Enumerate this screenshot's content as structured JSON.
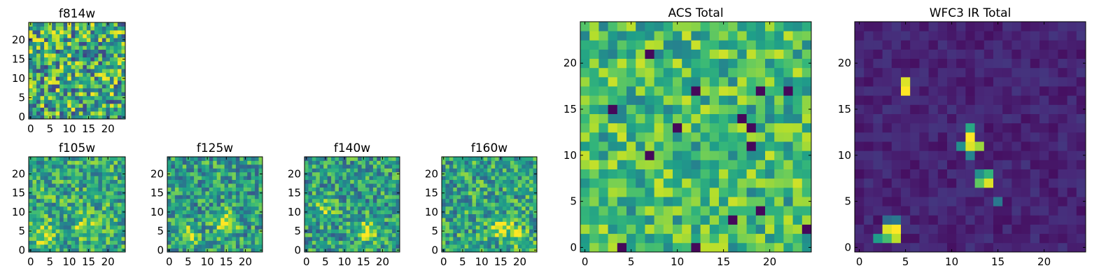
{
  "chart_data": [
    {
      "type": "heatmap",
      "title": "f814w",
      "grid": false,
      "xlim": [
        -0.5,
        24.5
      ],
      "ylim": [
        -0.5,
        24.5
      ],
      "x_ticks": [
        0,
        5,
        10,
        15,
        20
      ],
      "y_ticks": [
        0,
        5,
        10,
        15,
        20
      ],
      "colormap": "viridis",
      "vmin": 0,
      "vmax": 1,
      "seed": 11,
      "blobs": [],
      "base": 0.6,
      "noise": 0.8
    },
    {
      "type": "heatmap",
      "title": "f105w",
      "grid": false,
      "xlim": [
        -0.5,
        24.5
      ],
      "ylim": [
        -0.5,
        24.5
      ],
      "x_ticks": [
        0,
        5,
        10,
        15,
        20
      ],
      "y_ticks": [
        0,
        5,
        10,
        15,
        20
      ],
      "colormap": "viridis",
      "vmin": 0,
      "vmax": 1,
      "seed": 21,
      "blobs": [
        [
          4,
          4,
          0.35
        ],
        [
          14,
          6,
          0.3
        ]
      ],
      "base": 0.6,
      "noise": 0.55
    },
    {
      "type": "heatmap",
      "title": "f125w",
      "grid": false,
      "xlim": [
        -0.5,
        24.5
      ],
      "ylim": [
        -0.5,
        24.5
      ],
      "x_ticks": [
        0,
        5,
        10,
        15,
        20
      ],
      "y_ticks": [
        0,
        5,
        10,
        15,
        20
      ],
      "colormap": "viridis",
      "vmin": 0,
      "vmax": 1,
      "seed": 31,
      "blobs": [
        [
          15,
          7,
          0.4
        ],
        [
          5,
          4,
          0.25
        ]
      ],
      "base": 0.55,
      "noise": 0.55
    },
    {
      "type": "heatmap",
      "title": "f140w",
      "grid": false,
      "xlim": [
        -0.5,
        24.5
      ],
      "ylim": [
        -0.5,
        24.5
      ],
      "x_ticks": [
        0,
        5,
        10,
        15,
        20
      ],
      "y_ticks": [
        0,
        5,
        10,
        15,
        20
      ],
      "colormap": "viridis",
      "vmin": 0,
      "vmax": 1,
      "seed": 41,
      "blobs": [
        [
          16,
          5,
          0.4
        ],
        [
          5,
          11,
          0.2
        ]
      ],
      "base": 0.55,
      "noise": 0.55
    },
    {
      "type": "heatmap",
      "title": "f160w",
      "grid": false,
      "xlim": [
        -0.5,
        24.5
      ],
      "ylim": [
        -0.5,
        24.5
      ],
      "x_ticks": [
        0,
        5,
        10,
        15,
        20
      ],
      "y_ticks": [
        0,
        5,
        10,
        15,
        20
      ],
      "colormap": "viridis",
      "vmin": 0,
      "vmax": 1,
      "seed": 51,
      "blobs": [
        [
          15,
          6,
          0.4
        ],
        [
          20,
          3,
          0.25
        ]
      ],
      "base": 0.58,
      "noise": 0.55
    },
    {
      "type": "heatmap",
      "title": "ACS Total",
      "grid": false,
      "xlim": [
        -0.5,
        24.5
      ],
      "ylim": [
        -0.5,
        24.5
      ],
      "x_ticks": [
        0,
        5,
        10,
        15,
        20
      ],
      "y_ticks": [
        0,
        5,
        10,
        15,
        20
      ],
      "colormap": "viridis",
      "vmin": 0,
      "vmax": 1,
      "seed": 61,
      "blobs": [],
      "base": 0.68,
      "noise": 0.5,
      "low_cells": [
        [
          7,
          21
        ],
        [
          12,
          17
        ],
        [
          17,
          14
        ],
        [
          19,
          17
        ],
        [
          10,
          13
        ],
        [
          18,
          13
        ],
        [
          18,
          11
        ],
        [
          22,
          17
        ],
        [
          12,
          0
        ],
        [
          24,
          2
        ],
        [
          16,
          3
        ],
        [
          19,
          4
        ],
        [
          4,
          0
        ],
        [
          3,
          15
        ],
        [
          7,
          10
        ]
      ]
    },
    {
      "type": "heatmap",
      "title": "WFC3 IR Total",
      "grid": false,
      "xlim": [
        -0.5,
        24.5
      ],
      "ylim": [
        -0.5,
        24.5
      ],
      "x_ticks": [
        0,
        5,
        10,
        15,
        20
      ],
      "y_ticks": [
        0,
        5,
        10,
        15,
        20
      ],
      "colormap": "viridis",
      "vmin": 0,
      "vmax": 1,
      "seed": 71,
      "blobs": [],
      "base": 0.1,
      "noise": 0.12,
      "bright_cells": [
        [
          4,
          2,
          1.0
        ],
        [
          3,
          2,
          0.95
        ],
        [
          4,
          1,
          0.9
        ],
        [
          3,
          1,
          0.7
        ],
        [
          2,
          1,
          0.55
        ],
        [
          4,
          3,
          0.4
        ],
        [
          3,
          3,
          0.35
        ],
        [
          5,
          17,
          1.0
        ],
        [
          5,
          18,
          0.95
        ],
        [
          12,
          12,
          1.0
        ],
        [
          12,
          11,
          0.95
        ],
        [
          13,
          11,
          0.85
        ],
        [
          11,
          11,
          0.5
        ],
        [
          12,
          13,
          0.6
        ],
        [
          12,
          10,
          0.45
        ],
        [
          14,
          7,
          0.95
        ],
        [
          13,
          7,
          0.75
        ],
        [
          14,
          8,
          0.65
        ],
        [
          13,
          8,
          0.5
        ],
        [
          15,
          5,
          0.4
        ]
      ]
    }
  ]
}
